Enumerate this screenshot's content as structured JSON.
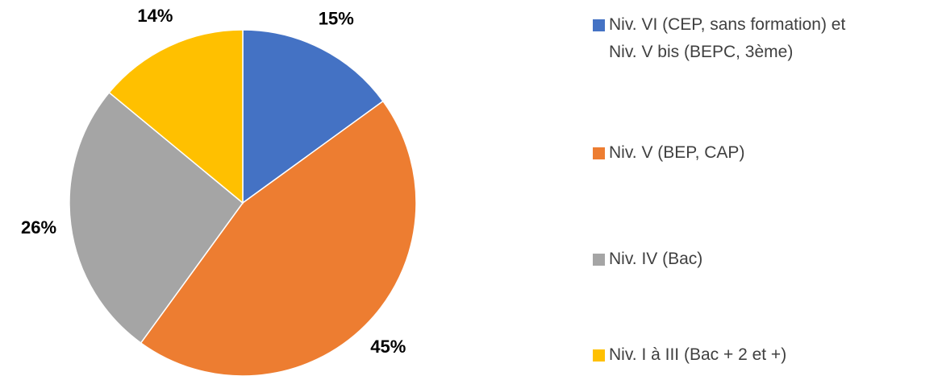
{
  "chart_data": {
    "type": "pie",
    "categories": [
      "Niv. VI (CEP, sans formation) et\nNiv. V bis (BEPC, 3ème)",
      "Niv. V (BEP, CAP)",
      "Niv. IV (Bac)",
      "Niv. I à III (Bac + 2 et +)"
    ],
    "values": [
      15,
      45,
      26,
      14
    ],
    "value_labels": [
      "15%",
      "45%",
      "26%",
      "14%"
    ],
    "colors": [
      "#4472c4",
      "#ed7d31",
      "#a5a5a5",
      "#ffc000"
    ],
    "legend": "right"
  }
}
